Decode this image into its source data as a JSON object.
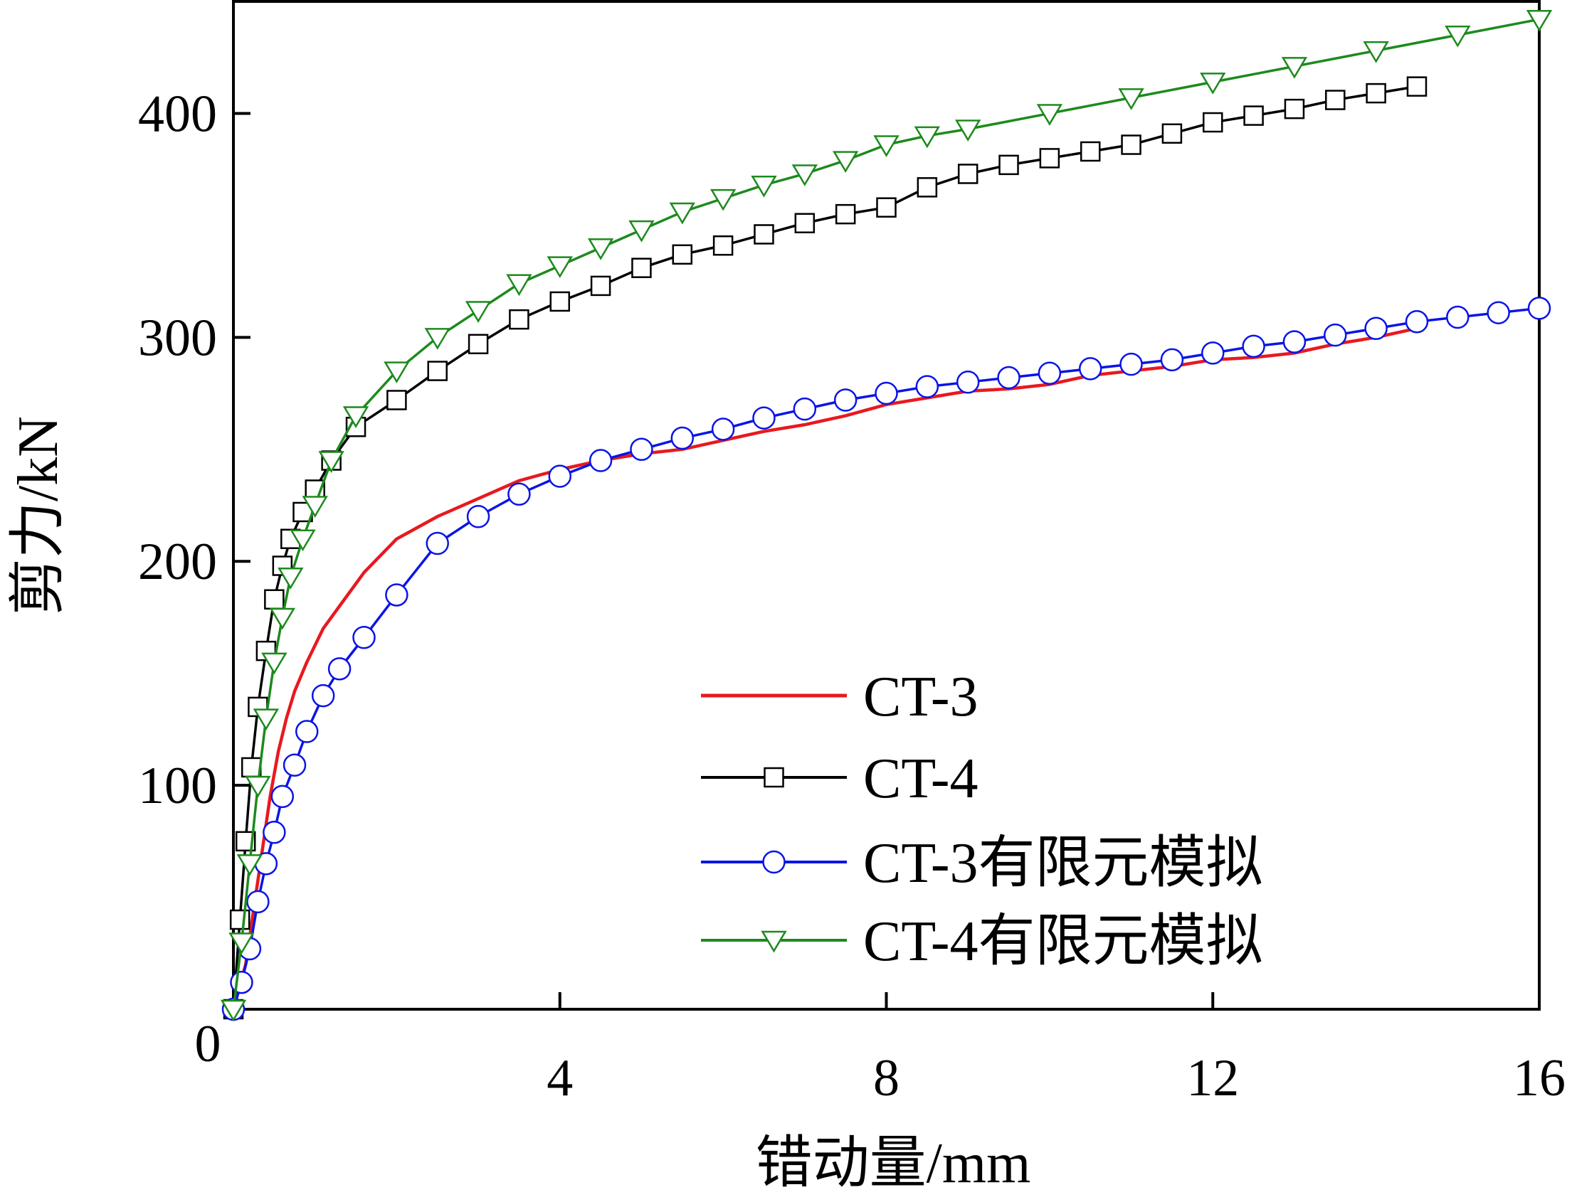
{
  "chart_data": {
    "type": "line",
    "title": "",
    "xlabel": "错动量/mm",
    "ylabel": "剪力/kN",
    "xlim": [
      0,
      16
    ],
    "ylim": [
      0,
      450
    ],
    "xticks": [
      4,
      8,
      12,
      16
    ],
    "yticks": [
      100,
      200,
      300,
      400
    ],
    "origin_label": "0",
    "legend_position": "lower-right",
    "series": [
      {
        "name": "CT-3",
        "color": "#e8191f",
        "marker": "none",
        "x": [
          0,
          0.15,
          0.25,
          0.35,
          0.45,
          0.55,
          0.65,
          0.75,
          0.9,
          1.1,
          1.3,
          1.6,
          2.0,
          2.5,
          3.0,
          3.5,
          4.0,
          4.5,
          5.0,
          5.5,
          6.0,
          6.5,
          7.0,
          7.5,
          8.0,
          8.5,
          9.0,
          9.5,
          10.0,
          10.5,
          11.0,
          11.5,
          12.0,
          12.5,
          13.0,
          13.5,
          14.0,
          14.5
        ],
        "y": [
          0,
          20,
          45,
          70,
          95,
          115,
          130,
          142,
          155,
          170,
          180,
          195,
          210,
          220,
          228,
          236,
          241,
          245,
          248,
          250,
          254,
          258,
          261,
          265,
          270,
          273,
          276,
          277,
          279,
          283,
          285,
          287,
          290,
          291,
          293,
          297,
          300,
          304
        ]
      },
      {
        "name": "CT-4",
        "color": "#000000",
        "marker": "square",
        "x": [
          0,
          0.08,
          0.15,
          0.22,
          0.3,
          0.4,
          0.5,
          0.6,
          0.7,
          0.85,
          1.0,
          1.2,
          1.5,
          2.0,
          2.5,
          3.0,
          3.5,
          4.0,
          4.5,
          5.0,
          5.5,
          6.0,
          6.5,
          7.0,
          7.5,
          8.0,
          8.5,
          9.0,
          9.5,
          10.0,
          10.5,
          11.0,
          11.5,
          12.0,
          12.5,
          13.0,
          13.5,
          14.0,
          14.5
        ],
        "y": [
          0,
          40,
          75,
          108,
          135,
          160,
          183,
          198,
          210,
          222,
          232,
          245,
          260,
          272,
          285,
          297,
          308,
          316,
          323,
          331,
          337,
          341,
          346,
          351,
          355,
          358,
          367,
          373,
          377,
          380,
          383,
          386,
          391,
          396,
          399,
          402,
          406,
          409,
          412
        ]
      },
      {
        "name": "CT-3有限元模拟",
        "color": "#0a14e6",
        "marker": "circle",
        "x": [
          0,
          0.1,
          0.2,
          0.3,
          0.4,
          0.5,
          0.6,
          0.75,
          0.9,
          1.1,
          1.3,
          1.6,
          2.0,
          2.5,
          3.0,
          3.5,
          4.0,
          4.5,
          5.0,
          5.5,
          6.0,
          6.5,
          7.0,
          7.5,
          8.0,
          8.5,
          9.0,
          9.5,
          10.0,
          10.5,
          11.0,
          11.5,
          12.0,
          12.5,
          13.0,
          13.5,
          14.0,
          14.5,
          15.0,
          15.5,
          16.0
        ],
        "y": [
          0,
          12,
          27,
          48,
          65,
          79,
          95,
          109,
          124,
          140,
          152,
          166,
          185,
          208,
          220,
          230,
          238,
          245,
          250,
          255,
          259,
          264,
          268,
          272,
          275,
          278,
          280,
          282,
          284,
          286,
          288,
          290,
          293,
          296,
          298,
          301,
          304,
          307,
          309,
          311,
          313
        ]
      },
      {
        "name": "CT-4有限元模拟",
        "color": "#1d8a1d",
        "marker": "triangle-down",
        "x": [
          0,
          0.1,
          0.2,
          0.3,
          0.4,
          0.5,
          0.6,
          0.7,
          0.85,
          1.0,
          1.2,
          1.5,
          2.0,
          2.5,
          3.0,
          3.5,
          4.0,
          4.5,
          5.0,
          5.5,
          6.0,
          6.5,
          7.0,
          7.5,
          8.0,
          8.5,
          9.0,
          10.0,
          11.0,
          12.0,
          13.0,
          14.0,
          15.0,
          16.0
        ],
        "y": [
          0,
          30,
          65,
          100,
          130,
          155,
          175,
          193,
          210,
          225,
          245,
          265,
          285,
          300,
          312,
          324,
          332,
          340,
          348,
          356,
          362,
          368,
          373,
          379,
          386,
          390,
          393,
          400,
          407,
          414,
          421,
          428,
          435,
          442
        ]
      }
    ]
  }
}
